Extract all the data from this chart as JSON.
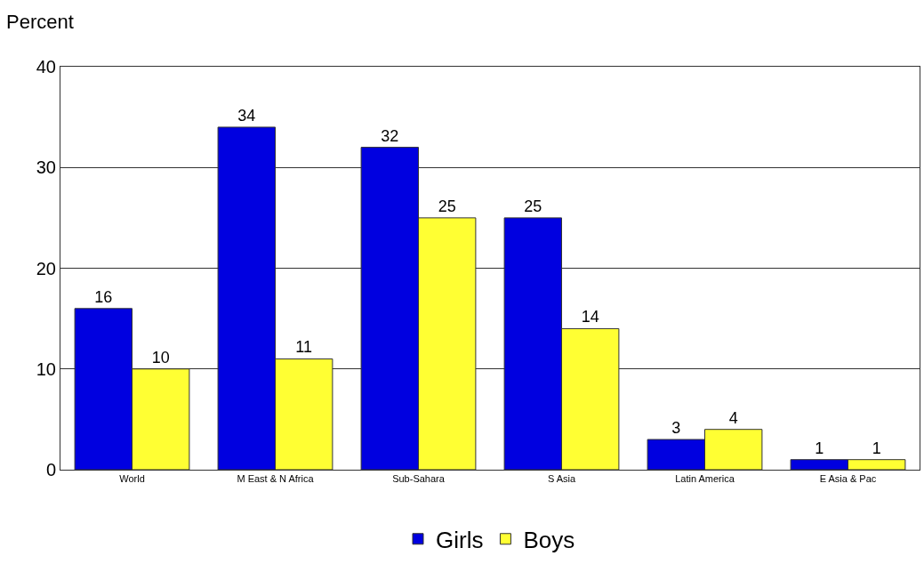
{
  "chart_data": {
    "type": "bar",
    "ylabel": "Percent",
    "categories": [
      "World",
      "M East & N Africa",
      "Sub-Sahara",
      "S Asia",
      "Latin America",
      "E Asia & Pac"
    ],
    "series": [
      {
        "name": "Girls",
        "color": "#0000e0",
        "values": [
          16,
          34,
          32,
          25,
          3,
          1
        ]
      },
      {
        "name": "Boys",
        "color": "#ffff33",
        "values": [
          10,
          11,
          25,
          14,
          4,
          1
        ]
      }
    ],
    "ylim": [
      0,
      40
    ],
    "yticks": [
      0,
      10,
      20,
      30,
      40
    ],
    "grid": "y",
    "legend": "bottom",
    "data_labels": true
  }
}
